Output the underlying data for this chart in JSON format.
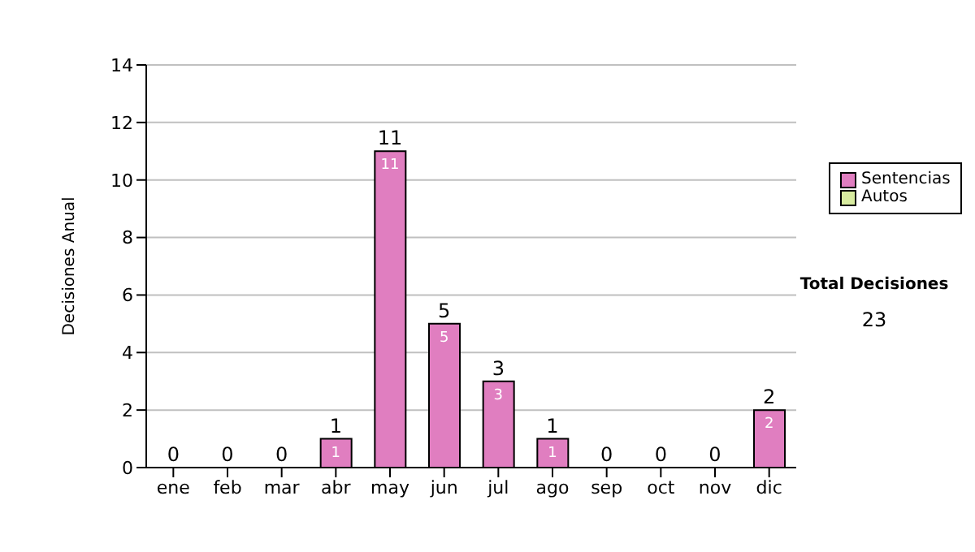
{
  "chart_data": {
    "type": "bar",
    "stacked": true,
    "ylabel": "Decisiones Anual",
    "categories": [
      "ene",
      "feb",
      "mar",
      "abr",
      "may",
      "jun",
      "jul",
      "ago",
      "sep",
      "oct",
      "nov",
      "dic"
    ],
    "series": [
      {
        "name": "Sentencias",
        "color": "#e07ec0",
        "values": [
          0,
          0,
          0,
          1,
          11,
          5,
          3,
          1,
          0,
          0,
          0,
          2
        ],
        "value_labels": [
          null,
          null,
          null,
          "1",
          "11",
          "5",
          "3",
          "1",
          null,
          null,
          null,
          "2"
        ]
      },
      {
        "name": "Autos",
        "color": "#d8eca0",
        "values": [
          0,
          0,
          0,
          0,
          0,
          0,
          0,
          0,
          0,
          0,
          0,
          0
        ]
      }
    ],
    "totals": [
      "0",
      "0",
      "0",
      "1",
      "11",
      "5",
      "3",
      "1",
      "0",
      "0",
      "0",
      "2"
    ],
    "ylim": [
      0,
      14
    ],
    "yticks": [
      0,
      2,
      4,
      6,
      8,
      10,
      12,
      14
    ],
    "grid": "y",
    "legend": "right",
    "annotations": [
      "Total Decisiones",
      "23"
    ]
  }
}
